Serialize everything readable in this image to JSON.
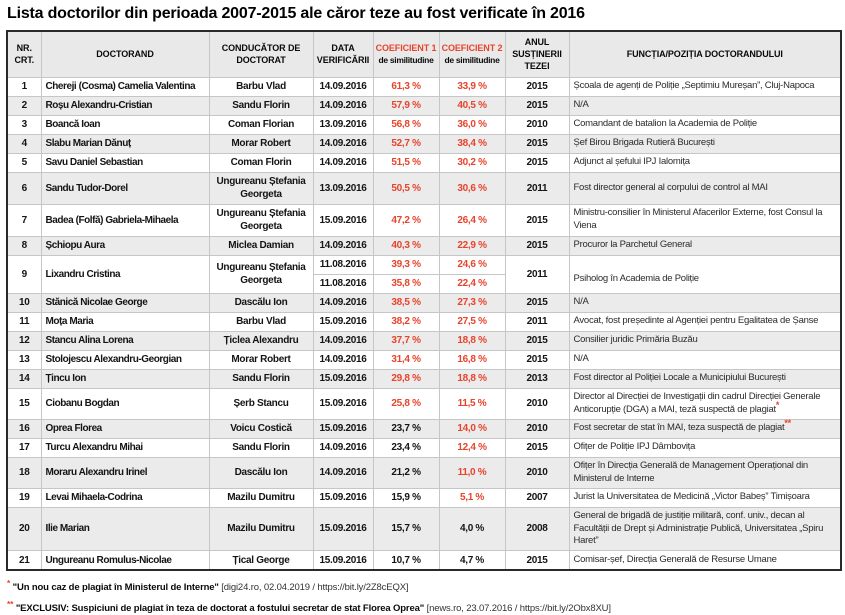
{
  "title": "Lista doctorilor din perioada 2007-2015 ale căror teze au fost verificate în 2016",
  "colors": {
    "accent_red": "#e8432b",
    "row_alt_bg": "#ebebeb",
    "header_bg": "#e9e9e9",
    "table_border": "#c6c6c6"
  },
  "table": {
    "headers": {
      "nr": [
        "NR.",
        "CRT."
      ],
      "doctorand": "DOCTORAND",
      "conducator": [
        "CONDUCĂTOR DE",
        "DOCTORAT"
      ],
      "data_verificarii": [
        "DATA",
        "VERIFICĂRII"
      ],
      "coeficient1": {
        "top": "COEFICIENT 1",
        "sub": "de similitudine"
      },
      "coeficient2": {
        "top": "COEFICIENT 2",
        "sub": "de similitudine"
      },
      "anul": [
        "ANUL",
        "SUSȚINERII",
        "TEZEI"
      ],
      "functia": "FUNCȚIA/POZIȚIA DOCTORANDULUI"
    },
    "rows": [
      {
        "nr": 1,
        "doctorand": "Chereji (Cosma) Camelia Valentina",
        "conducator": "Barbu Vlad",
        "entries": [
          {
            "date": "14.09.2016",
            "coef1": "61,3 %",
            "coef1_red": true,
            "coef2": "33,9 %",
            "coef2_red": true
          }
        ],
        "year": "2015",
        "functie": "Școala de agenți de Poliție „Septimiu Mureșan”, Cluj-Napoca",
        "note": ""
      },
      {
        "nr": 2,
        "doctorand": "Roșu Alexandru-Cristian",
        "conducator": "Sandu Florin",
        "entries": [
          {
            "date": "14.09.2016",
            "coef1": "57,9 %",
            "coef1_red": true,
            "coef2": "40,5 %",
            "coef2_red": true
          }
        ],
        "year": "2015",
        "functie": "N/A",
        "note": ""
      },
      {
        "nr": 3,
        "doctorand": "Boancă Ioan",
        "conducator": "Coman Florian",
        "entries": [
          {
            "date": "13.09.2016",
            "coef1": "56,8 %",
            "coef1_red": true,
            "coef2": "36,0 %",
            "coef2_red": true
          }
        ],
        "year": "2010",
        "functie": "Comandant de batalion la Academia de Poliție",
        "note": ""
      },
      {
        "nr": 4,
        "doctorand": "Slabu Marian Dănuț",
        "conducator": "Morar Robert",
        "entries": [
          {
            "date": "14.09.2016",
            "coef1": "52,7 %",
            "coef1_red": true,
            "coef2": "38,4 %",
            "coef2_red": true
          }
        ],
        "year": "2015",
        "functie": "Șef Birou Brigada Rutieră București",
        "note": ""
      },
      {
        "nr": 5,
        "doctorand": "Savu Daniel Sebastian",
        "conducator": "Coman Florin",
        "entries": [
          {
            "date": "14.09.2016",
            "coef1": "51,5 %",
            "coef1_red": true,
            "coef2": "30,2 %",
            "coef2_red": true
          }
        ],
        "year": "2015",
        "functie": "Adjunct al șefului IPJ Ialomița",
        "note": ""
      },
      {
        "nr": 6,
        "doctorand": "Sandu Tudor-Dorel",
        "conducator": "Ungureanu Ștefania Georgeta",
        "entries": [
          {
            "date": "13.09.2016",
            "coef1": "50,5 %",
            "coef1_red": true,
            "coef2": "30,6 %",
            "coef2_red": true
          }
        ],
        "year": "2011",
        "functie": "Fost director general al corpului de control al MAI",
        "note": ""
      },
      {
        "nr": 7,
        "doctorand": "Badea (Folfă) Gabriela-Mihaela",
        "conducator": "Ungureanu Ștefania Georgeta",
        "entries": [
          {
            "date": "15.09.2016",
            "coef1": "47,2 %",
            "coef1_red": true,
            "coef2": "26,4 %",
            "coef2_red": true
          }
        ],
        "year": "2015",
        "functie": "Ministru-consilier în Ministerul Afacerilor Externe, fost Consul la Viena",
        "note": ""
      },
      {
        "nr": 8,
        "doctorand": "Șchiopu Aura",
        "conducator": "Miclea Damian",
        "entries": [
          {
            "date": "14.09.2016",
            "coef1": "40,3 %",
            "coef1_red": true,
            "coef2": "22,9 %",
            "coef2_red": true
          }
        ],
        "year": "2015",
        "functie": "Procuror la Parchetul General",
        "note": ""
      },
      {
        "nr": 9,
        "doctorand": "Lixandru Cristina",
        "conducator": "Ungureanu Ștefania Georgeta",
        "entries": [
          {
            "date": "11.08.2016",
            "coef1": "39,3 %",
            "coef1_red": true,
            "coef2": "24,6 %",
            "coef2_red": true
          },
          {
            "date": "11.08.2016",
            "coef1": "35,8 %",
            "coef1_red": true,
            "coef2": "22,4 %",
            "coef2_red": true
          }
        ],
        "year": "2011",
        "functie": "Psiholog în Academia de Poliție",
        "note": ""
      },
      {
        "nr": 10,
        "doctorand": "Stănică Nicolae George",
        "conducator": "Dascălu Ion",
        "entries": [
          {
            "date": "14.09.2016",
            "coef1": "38,5 %",
            "coef1_red": true,
            "coef2": "27,3 %",
            "coef2_red": true
          }
        ],
        "year": "2015",
        "functie": "N/A",
        "note": ""
      },
      {
        "nr": 11,
        "doctorand": "Moța Maria",
        "conducator": "Barbu Vlad",
        "entries": [
          {
            "date": "15.09.2016",
            "coef1": "38,2 %",
            "coef1_red": true,
            "coef2": "27,5 %",
            "coef2_red": true
          }
        ],
        "year": "2011",
        "functie": "Avocat, fost președinte al Agenției pentru Egalitatea de Șanse",
        "note": ""
      },
      {
        "nr": 12,
        "doctorand": "Stancu Alina Lorena",
        "conducator": "Țiclea Alexandru",
        "entries": [
          {
            "date": "14.09.2016",
            "coef1": "37,7 %",
            "coef1_red": true,
            "coef2": "18,8 %",
            "coef2_red": true
          }
        ],
        "year": "2015",
        "functie": "Consilier juridic Primăria Buzău",
        "note": ""
      },
      {
        "nr": 13,
        "doctorand": "Stolojescu Alexandru-Georgian",
        "conducator": "Morar Robert",
        "entries": [
          {
            "date": "14.09.2016",
            "coef1": "31,4 %",
            "coef1_red": true,
            "coef2": "16,8 %",
            "coef2_red": true
          }
        ],
        "year": "2015",
        "functie": "N/A",
        "note": ""
      },
      {
        "nr": 14,
        "doctorand": "Țincu Ion",
        "conducator": "Sandu Florin",
        "entries": [
          {
            "date": "15.09.2016",
            "coef1": "29,8 %",
            "coef1_red": true,
            "coef2": "18,8 %",
            "coef2_red": true
          }
        ],
        "year": "2013",
        "functie": "Fost director al Poliției Locale a Municipiului București",
        "note": ""
      },
      {
        "nr": 15,
        "doctorand": "Ciobanu Bogdan",
        "conducator": "Șerb Stancu",
        "entries": [
          {
            "date": "15.09.2016",
            "coef1": "25,8 %",
            "coef1_red": true,
            "coef2": "11,5 %",
            "coef2_red": true
          }
        ],
        "year": "2010",
        "functie": "Director al Direcției de Investigații din cadrul Direcției Generale Anticorupție (DGA) a MAI, teză suspectă de plagiat",
        "note": "*"
      },
      {
        "nr": 16,
        "doctorand": "Oprea Florea",
        "conducator": "Voicu Costică",
        "entries": [
          {
            "date": "15.09.2016",
            "coef1": "23,7 %",
            "coef1_red": false,
            "coef2": "14,0 %",
            "coef2_red": true
          }
        ],
        "year": "2010",
        "functie": "Fost secretar de stat în MAI, teza suspectă de plagiat",
        "note": "**"
      },
      {
        "nr": 17,
        "doctorand": "Turcu Alexandru Mihai",
        "conducator": "Sandu Florin",
        "entries": [
          {
            "date": "14.09.2016",
            "coef1": "23,4 %",
            "coef1_red": false,
            "coef2": "12,4 %",
            "coef2_red": true
          }
        ],
        "year": "2015",
        "functie": "Ofițer de Poliție IPJ Dâmbovița",
        "note": ""
      },
      {
        "nr": 18,
        "doctorand": "Moraru Alexandru Irinel",
        "conducator": "Dascălu Ion",
        "entries": [
          {
            "date": "14.09.2016",
            "coef1": "21,2 %",
            "coef1_red": false,
            "coef2": "11,0 %",
            "coef2_red": true
          }
        ],
        "year": "2010",
        "functie": "Ofițer în Direcția Generală de Management Operațional din Ministerul de Interne",
        "note": ""
      },
      {
        "nr": 19,
        "doctorand": "Levai Mihaela-Codrina",
        "conducator": "Mazilu Dumitru",
        "entries": [
          {
            "date": "15.09.2016",
            "coef1": "15,9 %",
            "coef1_red": false,
            "coef2": "5,1 %",
            "coef2_red": true
          }
        ],
        "year": "2007",
        "functie": "Jurist la Universitatea de Medicină „Victor Babeș” Timișoara",
        "note": ""
      },
      {
        "nr": 20,
        "doctorand": "Ilie Marian",
        "conducator": "Mazilu Dumitru",
        "entries": [
          {
            "date": "15.09.2016",
            "coef1": "15,7 %",
            "coef1_red": false,
            "coef2": "4,0 %",
            "coef2_red": false
          }
        ],
        "year": "2008",
        "functie": "General de brigadă de justiție militară, conf. univ., decan al Facultății de Drept și Administrație Publică, Universitatea „Spiru Haret”",
        "note": ""
      },
      {
        "nr": 21,
        "doctorand": "Ungureanu Romulus-Nicolae",
        "conducator": "Țical George",
        "entries": [
          {
            "date": "15.09.2016",
            "coef1": "10,7 %",
            "coef1_red": false,
            "coef2": "4,7 %",
            "coef2_red": false
          }
        ],
        "year": "2015",
        "functie": "Comisar-șef, Direcția Generală de Resurse Umane",
        "note": ""
      }
    ]
  },
  "footnotes": [
    {
      "marker": "*",
      "quote": "\"Un nou caz de plagiat în Ministerul de Interne\"",
      "source": " [digi24.ro, 02.04.2019 / https://bit.ly/2Z8cEQX]"
    },
    {
      "marker": "**",
      "quote": "\"EXCLUSIV: Suspiciuni de plagiat în teza de doctorat a fostului secretar de stat Florea Oprea\"",
      "source": " [news.ro, 23.07.2016 / https://bit.ly/2Obx8XU]"
    }
  ]
}
